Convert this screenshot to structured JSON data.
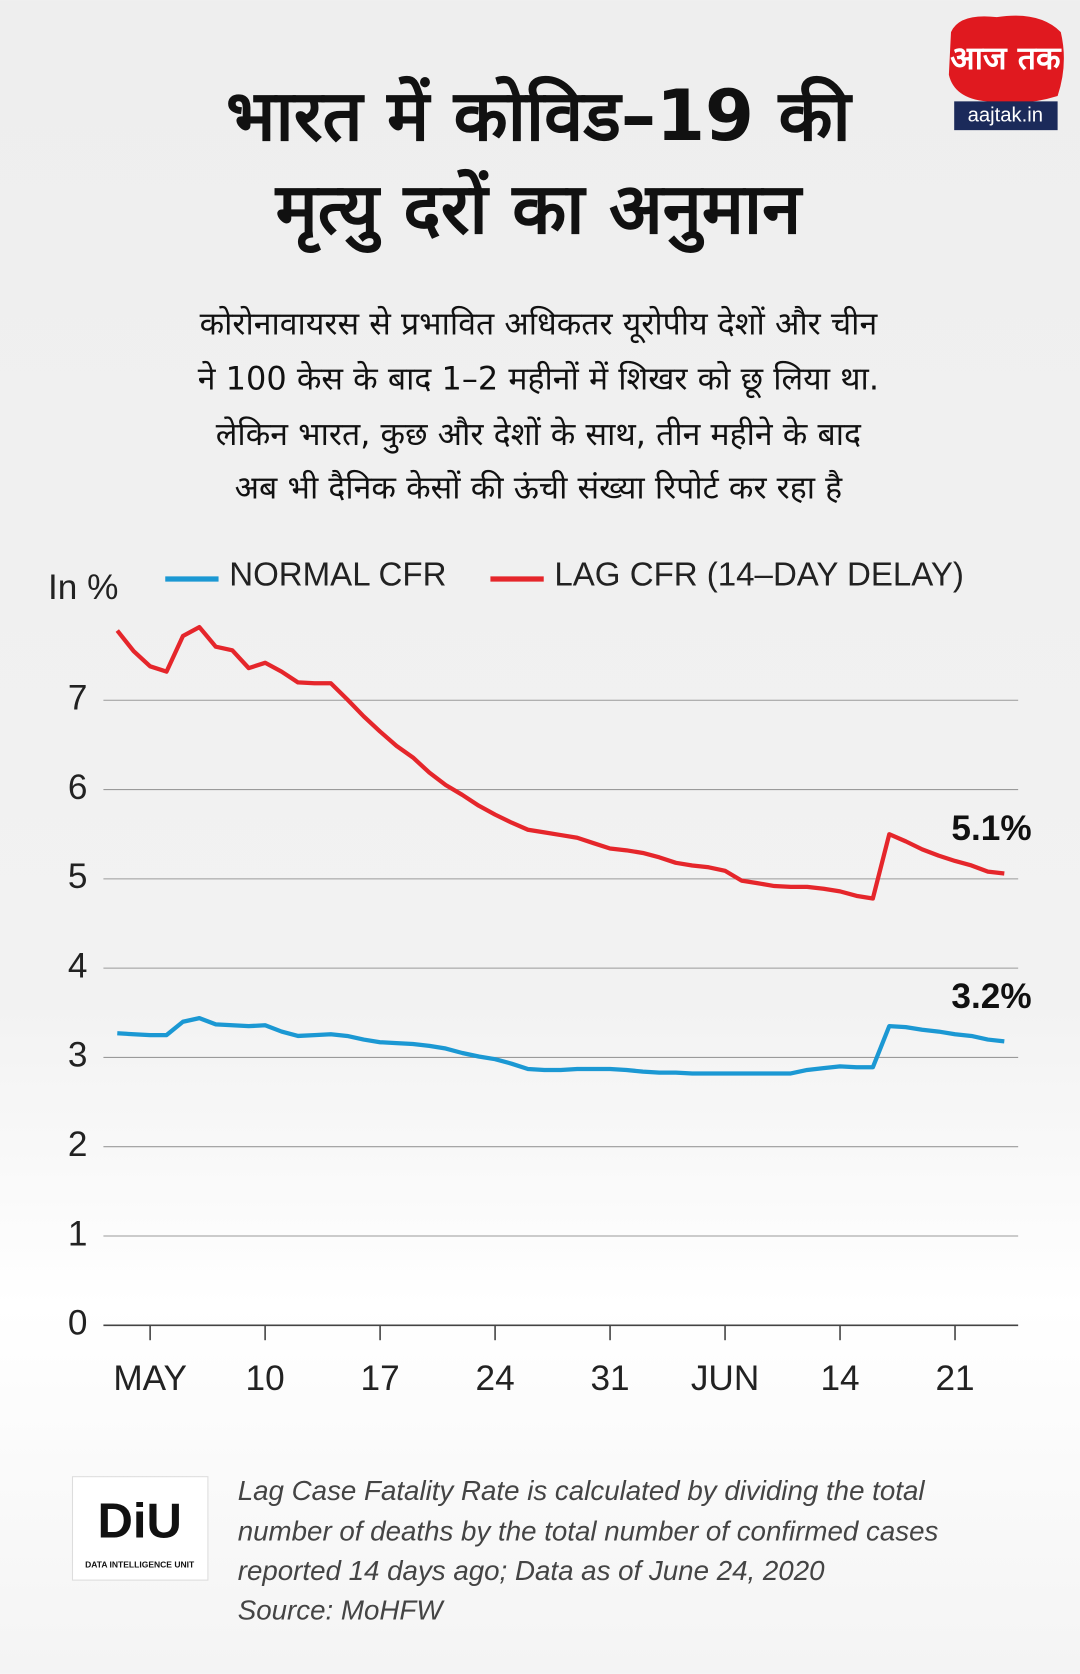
{
  "logo": {
    "main": "आज तक",
    "site": "aajtak.in"
  },
  "footer_logo": {
    "main": "DiU",
    "sub": "DATA INTELLIGENCE UNIT"
  },
  "chart_data": {
    "type": "line",
    "title": [
      "भारत में कोविड–19 की",
      "मृत्यु दरों का अनुमान"
    ],
    "subtitle": [
      "कोरोनावायरस से प्रभावित अधिकतर यूरोपीय देशों और चीन",
      "ने 100 केस के बाद 1–2 महीनों में शिखर को छू लिया था.",
      "लेकिन भारत, कुछ और देशों के साथ, तीन महीने के बाद",
      "अब भी दैनिक केसों की ऊंची संख्या रिपोर्ट कर रहा है"
    ],
    "y_label": "In %",
    "categories": [
      null,
      null,
      "MAY",
      null,
      null,
      null,
      null,
      null,
      null,
      "10",
      null,
      null,
      null,
      null,
      null,
      null,
      "17",
      null,
      null,
      null,
      null,
      null,
      null,
      "24",
      null,
      null,
      null,
      null,
      null,
      null,
      "31",
      null,
      null,
      null,
      null,
      null,
      null,
      "JUN",
      null,
      null,
      null,
      null,
      null,
      null,
      "14",
      null,
      null,
      null,
      null,
      null,
      null,
      "21",
      null,
      null,
      null
    ],
    "series": [
      {
        "name": "NORMAL CFR",
        "color": "#1b98d3",
        "values": [
          3.27,
          3.26,
          3.25,
          3.25,
          3.4,
          3.44,
          3.37,
          3.36,
          3.35,
          3.36,
          3.29,
          3.24,
          3.25,
          3.26,
          3.24,
          3.2,
          3.17,
          3.16,
          3.15,
          3.13,
          3.1,
          3.05,
          3.01,
          2.98,
          2.93,
          2.87,
          2.86,
          2.86,
          2.87,
          2.87,
          2.87,
          2.86,
          2.84,
          2.83,
          2.83,
          2.82,
          2.82,
          2.82,
          2.82,
          2.82,
          2.82,
          2.82,
          2.86,
          2.88,
          2.9,
          2.89,
          2.89,
          3.35,
          3.34,
          3.31,
          3.29,
          3.26,
          3.24,
          3.2,
          3.18
        ],
        "value_labels": [
          null,
          null,
          null,
          null,
          null,
          null,
          null,
          null,
          null,
          null,
          null,
          null,
          null,
          null,
          null,
          null,
          null,
          null,
          null,
          null,
          null,
          null,
          null,
          null,
          null,
          null,
          null,
          null,
          null,
          null,
          null,
          null,
          null,
          null,
          null,
          null,
          null,
          null,
          null,
          null,
          null,
          null,
          null,
          null,
          null,
          null,
          null,
          null,
          null,
          null,
          null,
          null,
          null,
          null,
          "3.2%"
        ]
      },
      {
        "name": "LAG CFR (14–DAY DELAY)",
        "color": "#e5262b",
        "values": [
          7.78,
          7.55,
          7.38,
          7.32,
          7.72,
          7.82,
          7.6,
          7.56,
          7.36,
          7.42,
          7.32,
          7.2,
          7.19,
          7.19,
          7.01,
          6.82,
          6.65,
          6.49,
          6.36,
          6.19,
          6.05,
          5.94,
          5.82,
          5.72,
          5.63,
          5.55,
          5.52,
          5.49,
          5.46,
          5.4,
          5.34,
          5.32,
          5.29,
          5.24,
          5.18,
          5.15,
          5.13,
          5.09,
          4.98,
          4.95,
          4.92,
          4.91,
          4.91,
          4.89,
          4.86,
          4.81,
          4.78,
          5.5,
          5.42,
          5.33,
          5.26,
          5.2,
          5.15,
          5.08,
          5.06
        ],
        "value_labels": [
          null,
          null,
          null,
          null,
          null,
          null,
          null,
          null,
          null,
          null,
          null,
          null,
          null,
          null,
          null,
          null,
          null,
          null,
          null,
          null,
          null,
          null,
          null,
          null,
          null,
          null,
          null,
          null,
          null,
          null,
          null,
          null,
          null,
          null,
          null,
          null,
          null,
          null,
          null,
          null,
          null,
          null,
          null,
          null,
          null,
          null,
          null,
          null,
          null,
          null,
          null,
          null,
          null,
          null,
          "5.1%"
        ]
      }
    ],
    "ylim": [
      0,
      8
    ],
    "yticks": [
      0,
      1,
      2,
      3,
      4,
      5,
      6,
      7
    ],
    "grid": true,
    "note": [
      "Lag Case Fatality Rate is calculated by dividing the total",
      "number of deaths by the total number of confirmed cases",
      "reported 14 days ago; Data as of June 24, 2020"
    ],
    "source": "Source: MoHFW"
  }
}
